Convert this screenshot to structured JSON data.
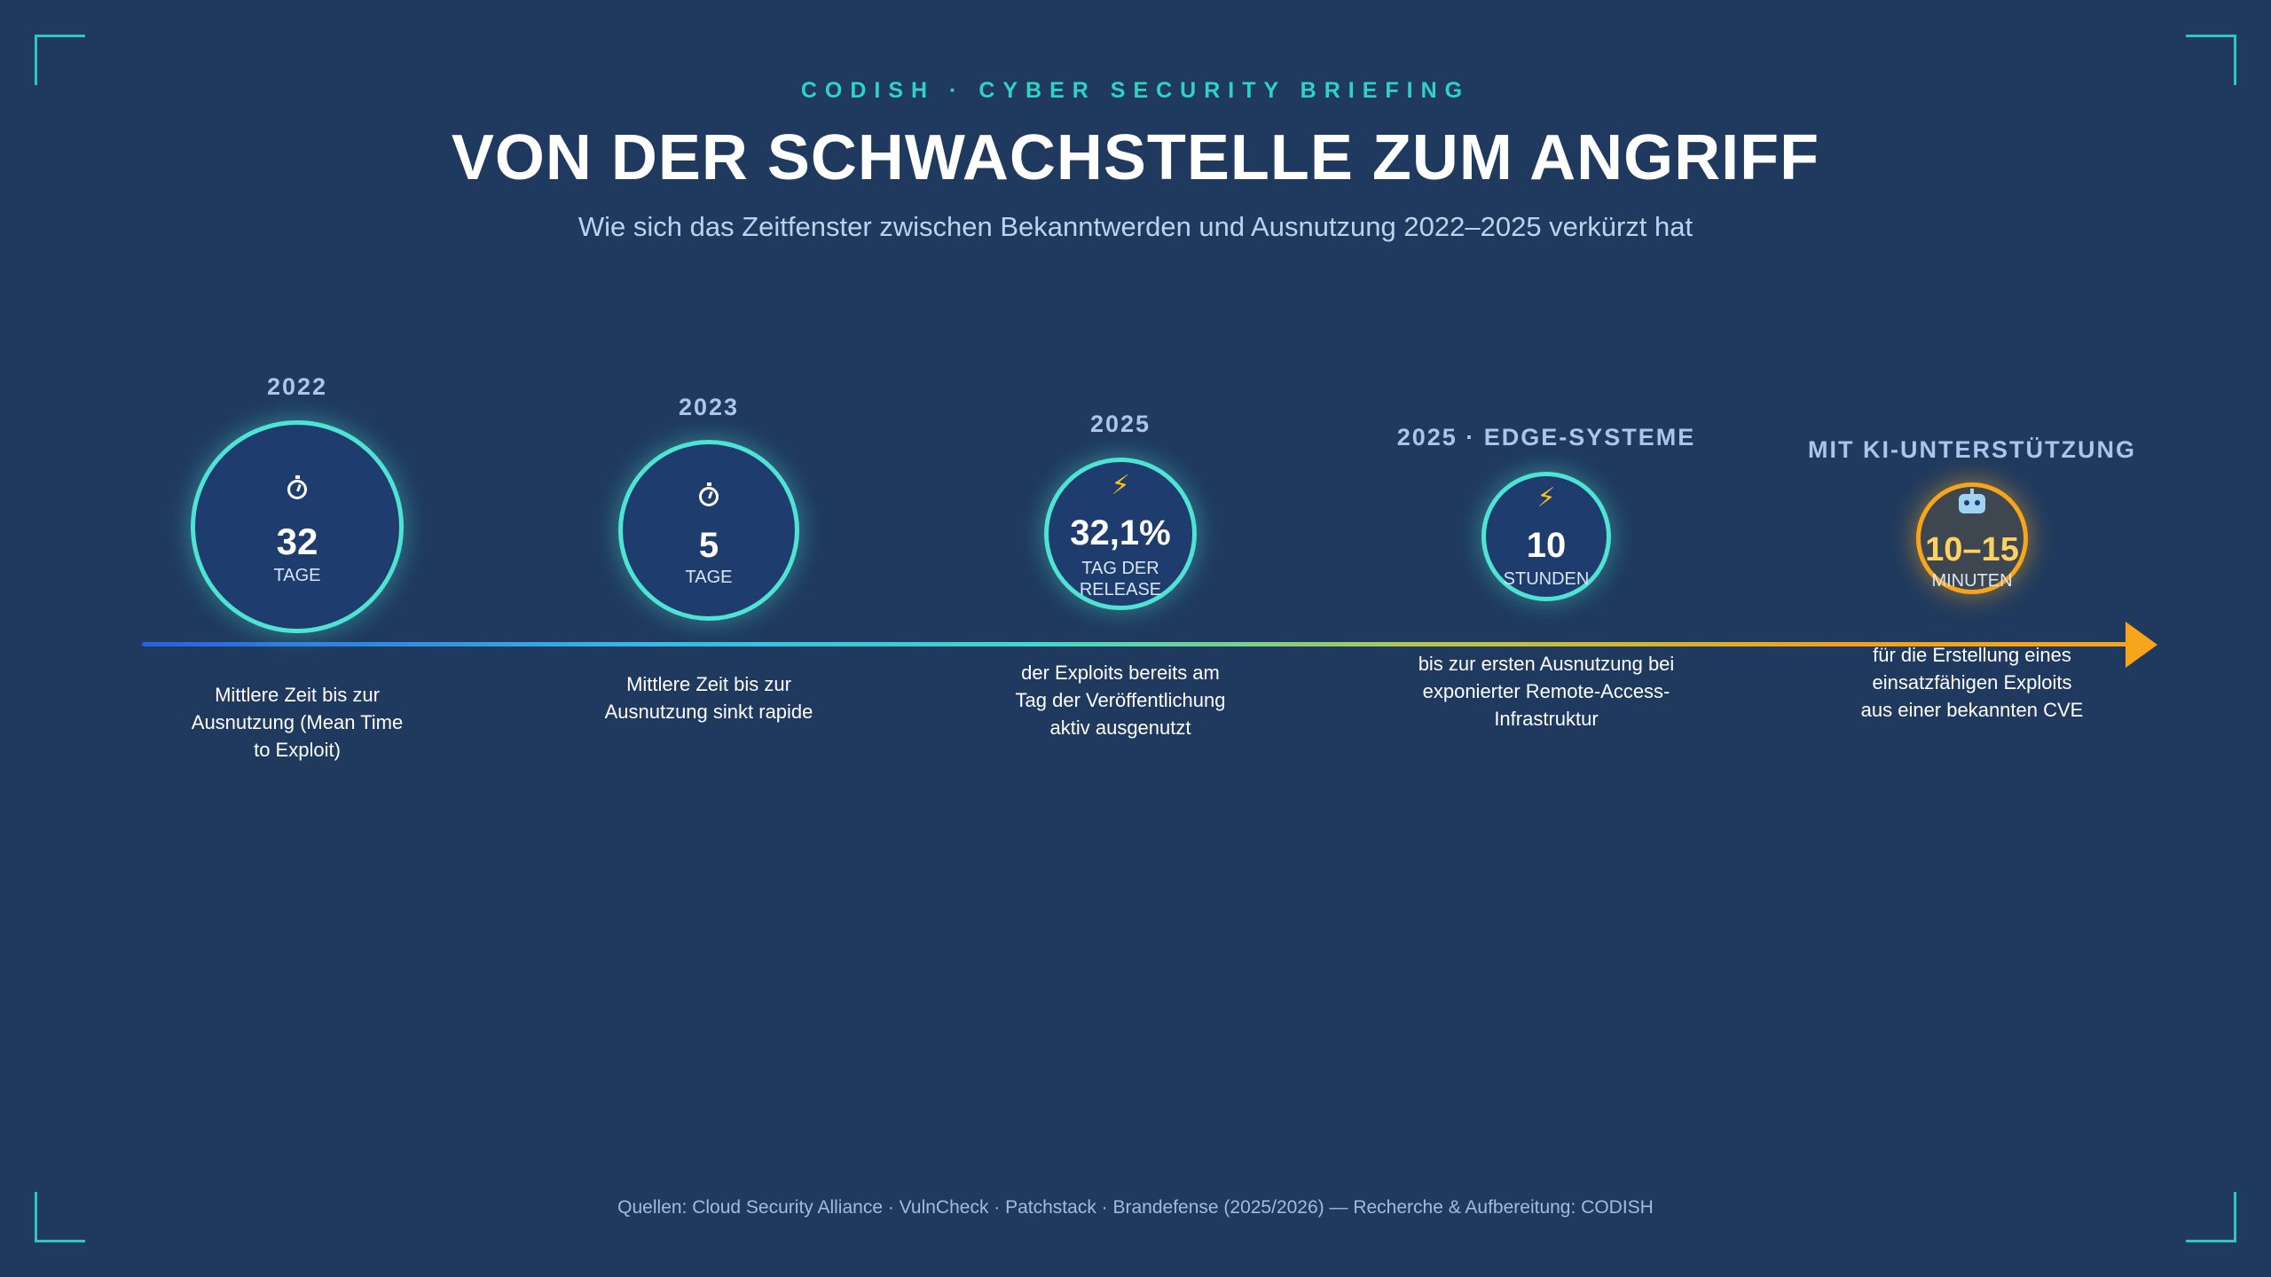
{
  "header": {
    "eyebrow": "CODISH · CYBER SECURITY BRIEFING",
    "title": "VON DER SCHWACHSTELLE ZUM ANGRIFF",
    "subtitle": "Wie sich das Zeitfenster zwischen Bekanntwerden und Ausnutzung 2022–2025 verkürzt hat"
  },
  "milestones": [
    {
      "label": "2022",
      "icon": "stopwatch-icon",
      "value": "32",
      "unit": "TAGE",
      "description": "Mittlere Zeit bis zur Ausnutzung (Mean Time to Exploit)"
    },
    {
      "label": "2023",
      "icon": "stopwatch-icon",
      "value": "5",
      "unit": "TAGE",
      "description": "Mittlere Zeit bis zur Ausnutzung sinkt rapide"
    },
    {
      "label": "2025",
      "icon": "lightning-bolt-icon",
      "value": "32,1%",
      "unit": "TAG DER RELEASE",
      "description": "der Exploits bereits am Tag der Veröffentlichung aktiv ausgenutzt"
    },
    {
      "label": "2025 · EDGE-SYSTEME",
      "icon": "lightning-bolt-icon",
      "value": "10",
      "unit": "STUNDEN",
      "description": "bis zur ersten Ausnutzung bei exponierter Remote-Access-Infrastruktur"
    },
    {
      "label": "MIT KI-UNTERSTÜTZUNG",
      "icon": "robot-icon",
      "value": "10–15",
      "unit": "MINUTEN",
      "description": "für die Erstellung eines einsatzfähigen Exploits aus einer bekannten CVE"
    }
  ],
  "colors": {
    "background": "#1f3a5e",
    "accent_teal": "#4fe3d4",
    "accent_orange": "#f7a51b"
  },
  "footer": {
    "sources": "Quellen: Cloud Security Alliance · VulnCheck · Patchstack · Brandefense (2025/2026) — Recherche & Aufbereitung: CODISH"
  }
}
